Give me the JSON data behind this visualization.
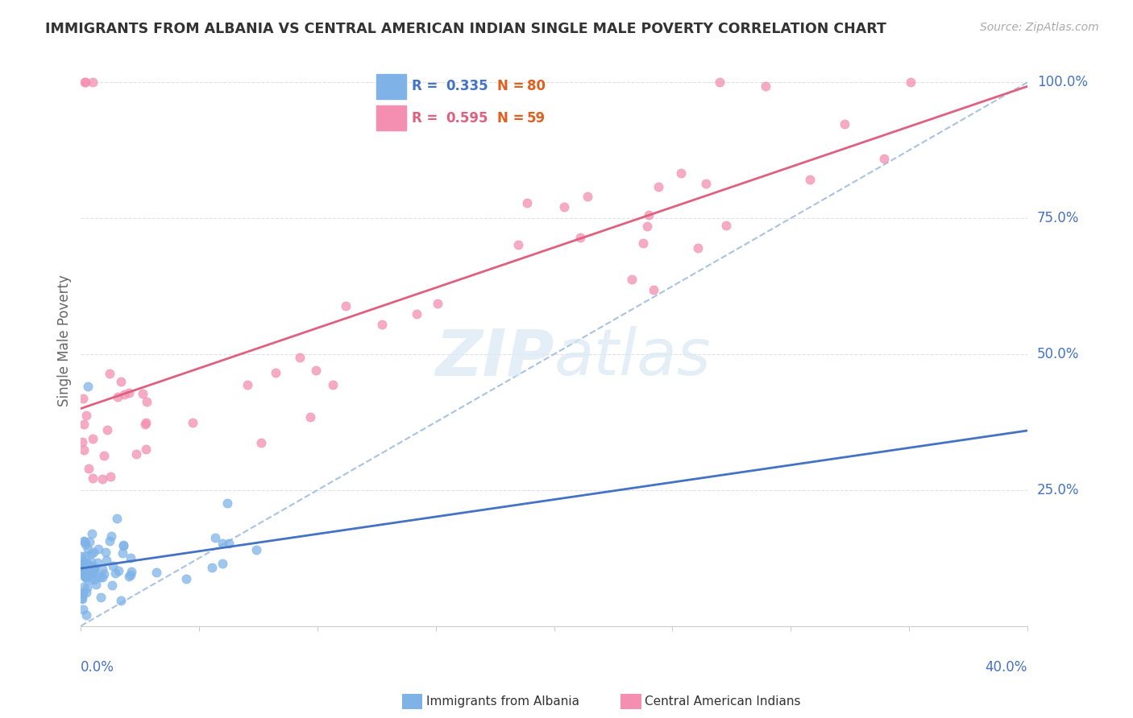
{
  "title": "IMMIGRANTS FROM ALBANIA VS CENTRAL AMERICAN INDIAN SINGLE MALE POVERTY CORRELATION CHART",
  "source": "Source: ZipAtlas.com",
  "ylabel": "Single Male Poverty",
  "legend_blue_r": "R = 0.335",
  "legend_blue_n": "N = 80",
  "legend_pink_r": "R = 0.595",
  "legend_pink_n": "N = 59",
  "blue_color": "#7FB3E8",
  "pink_color": "#F48FB1",
  "blue_line_color": "#4472C4",
  "pink_line_color": "#E06080",
  "dashed_line_color": "#A8C4E0",
  "axis_label_color": "#4472C4",
  "title_color": "#333333",
  "grid_color": "#E0E0E8",
  "background": "#FFFFFF",
  "orange_color": "#E06020",
  "watermark_color": "#D8E8F5",
  "ytick_vals": [
    0.25,
    0.5,
    0.75,
    1.0
  ],
  "ytick_labels": [
    "25.0%",
    "50.0%",
    "75.0%",
    "100.0%"
  ],
  "xlim": [
    0.0,
    0.4
  ],
  "ylim": [
    0.0,
    1.05
  ]
}
